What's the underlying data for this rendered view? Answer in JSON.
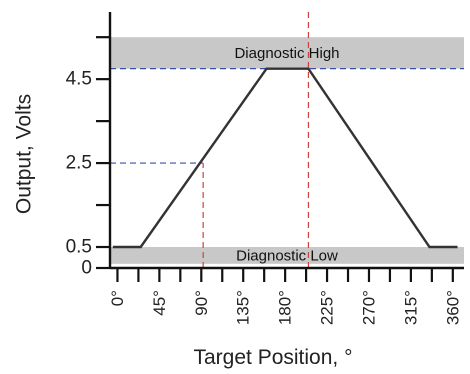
{
  "chart_data": {
    "type": "line",
    "title": "",
    "xlabel": "Target Position, °",
    "ylabel": "Output, Volts",
    "xlim": [
      -8,
      372
    ],
    "ylim": [
      0,
      6.1
    ],
    "x_ticks": [
      0,
      45,
      90,
      135,
      180,
      225,
      270,
      315,
      360
    ],
    "x_tick_labels": [
      "0°",
      "45°",
      "90°",
      "135°",
      "180°",
      "225°",
      "270°",
      "315°",
      "360°"
    ],
    "x_minor_ticks": [
      22.5,
      67.5,
      112.5,
      157.5,
      202.5,
      247.5,
      292.5,
      337.5
    ],
    "y_ticks": [
      0,
      0.5,
      2.5,
      4.5
    ],
    "y_tick_labels": [
      "0",
      "0.5",
      "2.5",
      "4.5"
    ],
    "y_extra_ticks": [
      1.5,
      3.5,
      5.5
    ],
    "series": [
      {
        "x": [
          -5,
          25,
          160,
          205,
          335,
          365
        ],
        "y": [
          0.5,
          0.5,
          4.75,
          4.75,
          0.5,
          0.5
        ],
        "color": "#333333"
      }
    ],
    "bands": [
      {
        "label": "Diagnostic High",
        "y_from": 4.75,
        "y_to": 5.5,
        "color": "#c8c8c8"
      },
      {
        "label": "Diagnostic Low",
        "y_from": 0.1,
        "y_to": 0.5,
        "color": "#c8c8c8"
      }
    ],
    "reference_lines": [
      {
        "orientation": "horizontal",
        "y": 4.75,
        "x_from": -8,
        "x_to": 372,
        "color": "#3b4fa8",
        "style": "dashed"
      },
      {
        "orientation": "horizontal",
        "y": 2.5,
        "x_from": -8,
        "x_to": 92,
        "color": "#3b4fa8",
        "style": "dashed"
      },
      {
        "orientation": "vertical",
        "x": 92,
        "y_from": 0,
        "y_to": 2.5,
        "color": "#d04040",
        "style": "dashed"
      },
      {
        "orientation": "vertical",
        "x": 205,
        "y_from": 0,
        "y_to": 6.1,
        "color": "#d04040",
        "style": "dashed"
      }
    ],
    "grid": false,
    "legend": "none"
  }
}
